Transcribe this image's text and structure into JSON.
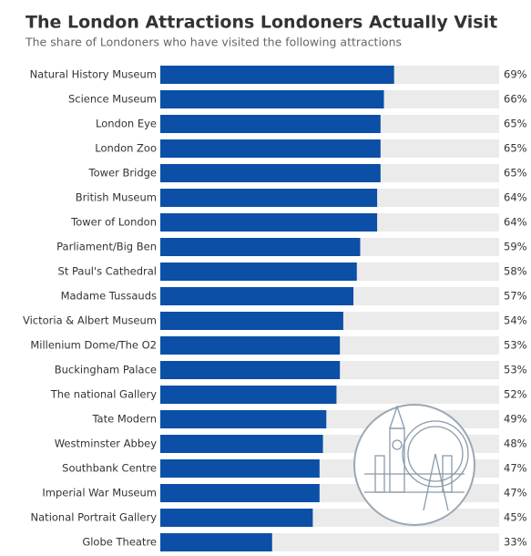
{
  "chart_data": {
    "type": "bar",
    "orientation": "horizontal",
    "title": "The London Attractions Londoners Actually Visit",
    "subtitle": "The share of Londoners who have visited the following attractions",
    "categories": [
      "Natural History Museum",
      "Science Museum",
      "London Eye",
      "London Zoo",
      "Tower Bridge",
      "British Museum",
      "Tower of London",
      "Parliament/Big Ben",
      "St Paul's Cathedral",
      "Madame Tussauds",
      "Victoria & Albert Museum",
      "Millenium Dome/The O2",
      "Buckingham Palace",
      "The national Gallery",
      "Tate Modern",
      "Westminster Abbey",
      "Southbank Centre",
      "Imperial War Museum",
      "National Portrait Gallery",
      "Globe Theatre"
    ],
    "values": [
      69,
      66,
      65,
      65,
      65,
      64,
      64,
      59,
      58,
      57,
      54,
      53,
      53,
      52,
      49,
      48,
      47,
      47,
      45,
      33
    ],
    "value_labels": [
      "69%",
      "66%",
      "65%",
      "65%",
      "65%",
      "64%",
      "64%",
      "59%",
      "58%",
      "57%",
      "54%",
      "53%",
      "53%",
      "52%",
      "49%",
      "48%",
      "47%",
      "47%",
      "45%",
      "33%"
    ],
    "color": "#0b4fa6",
    "xlim": [
      0,
      100
    ]
  }
}
